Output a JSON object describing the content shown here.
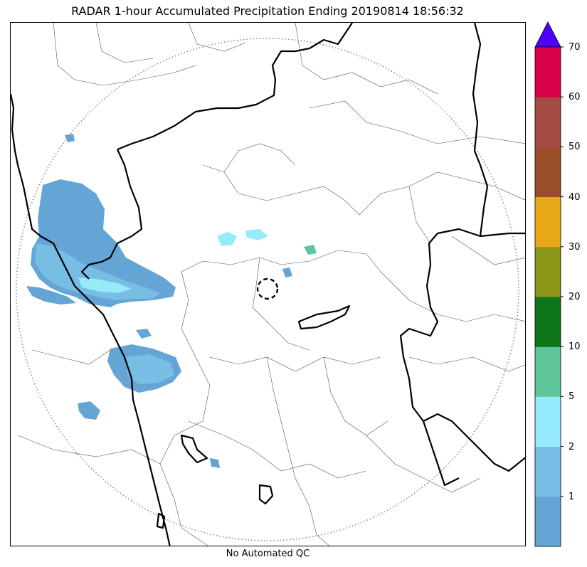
{
  "title": "RADAR 1-hour Accumulated Precipitation Ending 20190814 18:56:32",
  "caption": "No Automated QC",
  "map": {
    "range_ring": "dotted",
    "radar_site_marker": "dashed-circle",
    "boundaries": [
      "state-borders-thick",
      "district-borders-thin",
      "coastline-thick"
    ]
  },
  "colorbar": {
    "extend": "max",
    "bins": [
      {
        "from": 0,
        "to": 1,
        "color": "#64a5d6"
      },
      {
        "from": 1,
        "to": 2,
        "color": "#78bde3"
      },
      {
        "from": 2,
        "to": 5,
        "color": "#96ebfa"
      },
      {
        "from": 5,
        "to": 10,
        "color": "#5fc59b"
      },
      {
        "from": 10,
        "to": 20,
        "color": "#0f7519"
      },
      {
        "from": 20,
        "to": 30,
        "color": "#8a9618"
      },
      {
        "from": 30,
        "to": 40,
        "color": "#e8a919"
      },
      {
        "from": 40,
        "to": 50,
        "color": "#9a4f2a"
      },
      {
        "from": 50,
        "to": 60,
        "color": "#a54a43"
      },
      {
        "from": 60,
        "to": 70,
        "color": "#d80046"
      }
    ],
    "over_color": "#4e00ff",
    "tick_labels": [
      "1",
      "2",
      "5",
      "10",
      "20",
      "30",
      "40",
      "50",
      "60",
      "70"
    ]
  }
}
